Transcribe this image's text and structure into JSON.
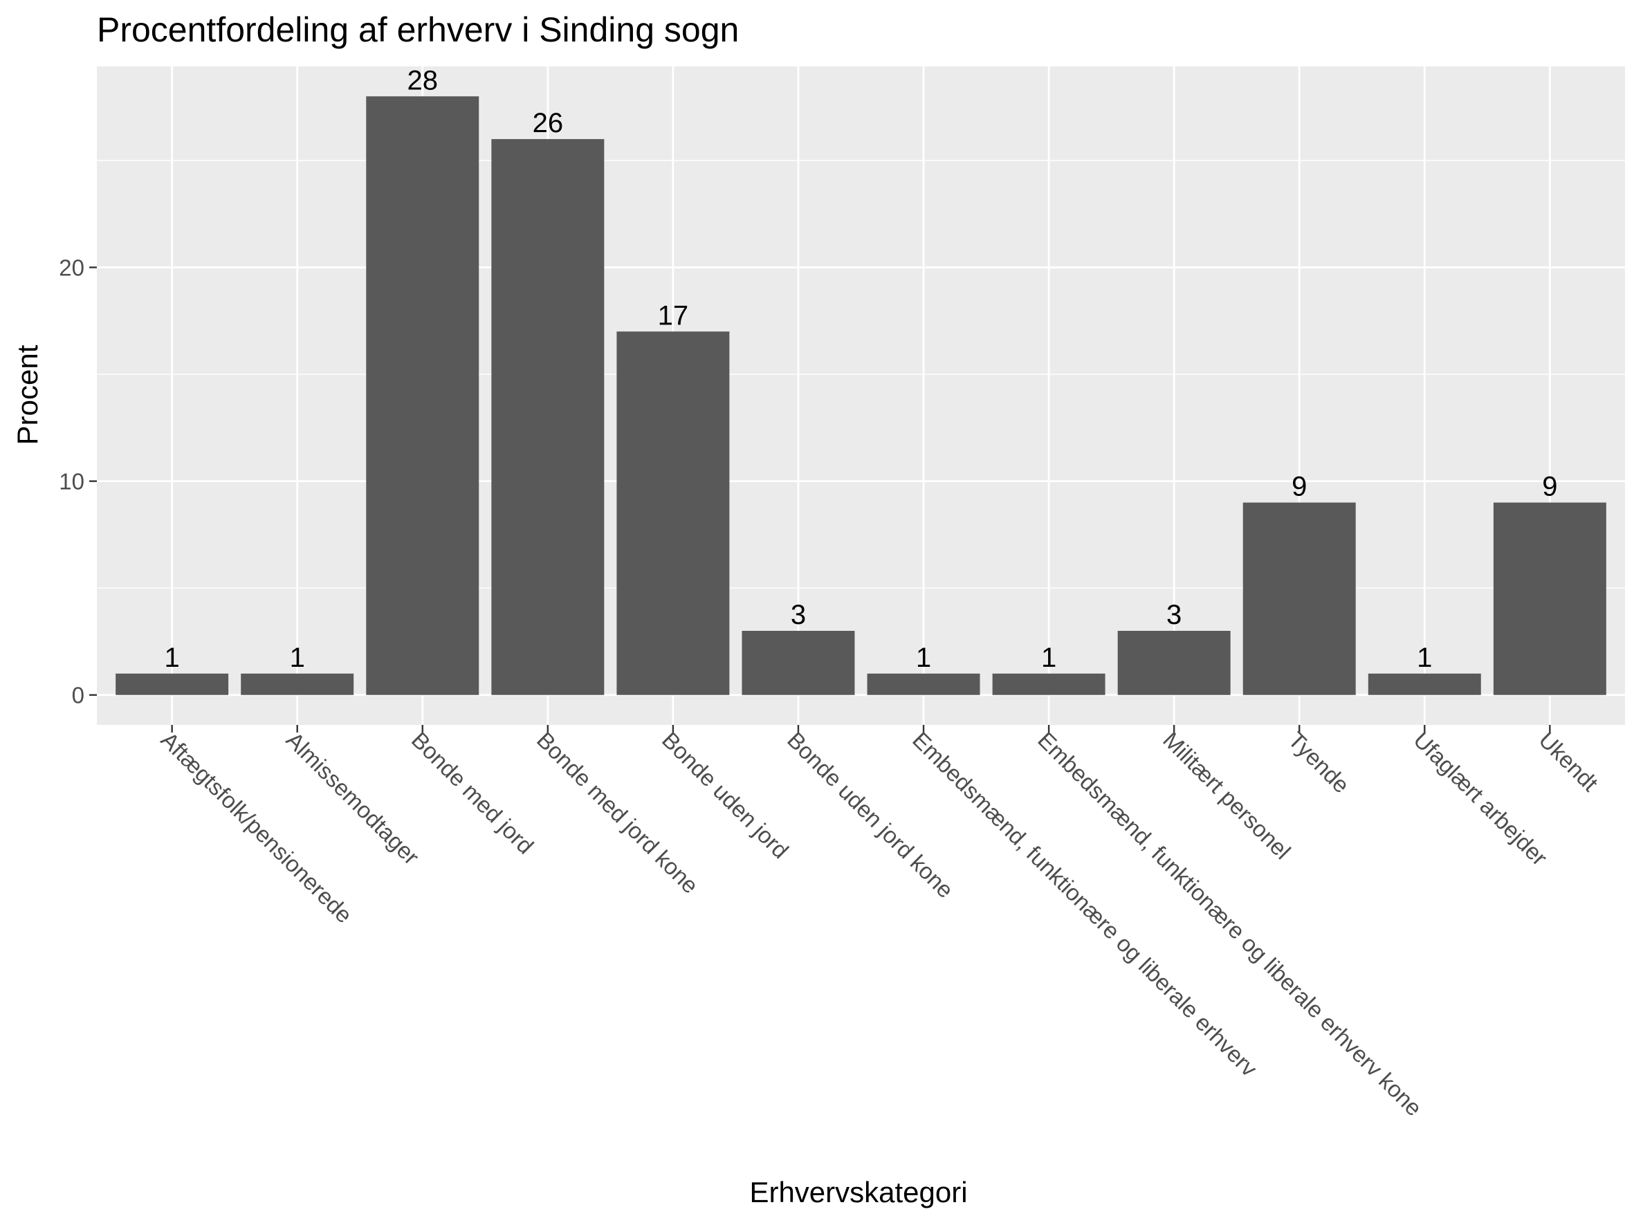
{
  "chart_data": {
    "type": "bar",
    "title": "Procentfordeling af erhverv i Sinding sogn",
    "xlabel": "Erhvervskategori",
    "ylabel": "Procent",
    "ylim": [
      -1.4,
      29.4
    ],
    "yticks": [
      0,
      10,
      20
    ],
    "grid": true,
    "categories": [
      "Aftægtsfolk/pensionerede",
      "Almissemodtager",
      "Bonde med jord",
      "Bonde med jord kone",
      "Bonde uden jord",
      "Bonde uden jord kone",
      "Embedsmænd, funktionære og liberale erhverv",
      "Embedsmænd, funktionære og liberale erhverv kone",
      "Militært personel",
      "Tyende",
      "Ufaglært arbejder",
      "Ukendt"
    ],
    "values": [
      1,
      1,
      28,
      26,
      17,
      3,
      1,
      1,
      3,
      9,
      1,
      9
    ],
    "data_labels": [
      "1",
      "1",
      "28",
      "26",
      "17",
      "3",
      "1",
      "1",
      "3",
      "9",
      "1",
      "9"
    ],
    "colors": {
      "panel_background": "#ebebeb",
      "grid_major": "#ffffff",
      "bar_fill": "#595959",
      "tick_text": "#4d4d4d",
      "tick_mark": "#333333"
    }
  }
}
